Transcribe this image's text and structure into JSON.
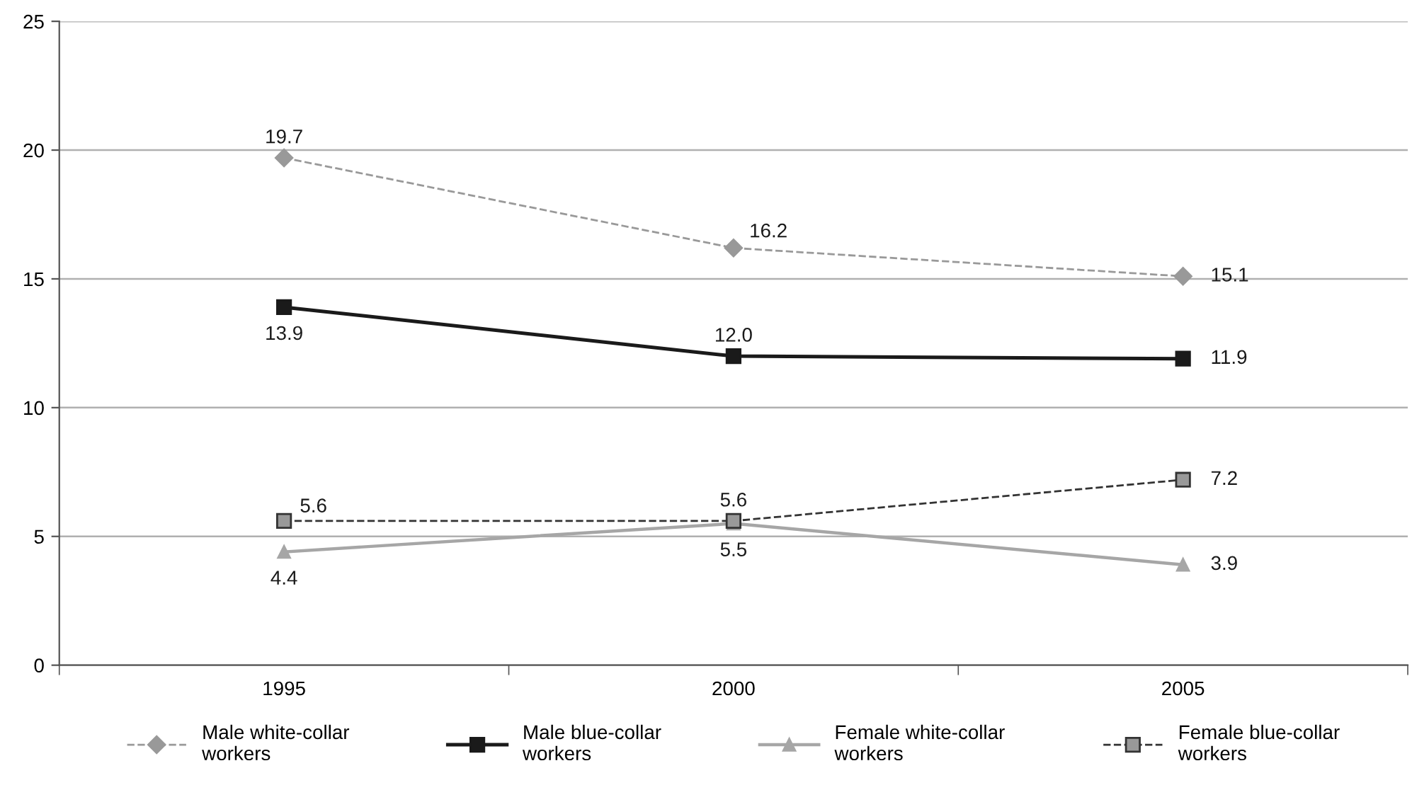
{
  "chart_data": {
    "type": "line",
    "categories": [
      "1995",
      "2000",
      "2005"
    ],
    "series": [
      {
        "name": "Male white-collar\nworkers",
        "color": "#999999",
        "values": [
          19.7,
          16.2,
          15.1
        ],
        "value_labels": [
          "19.7",
          "16.2",
          "15.1"
        ],
        "marker": "diamond",
        "line_style": "dashed"
      },
      {
        "name": "Male blue-collar\nworkers",
        "color": "#1a1a1a",
        "values": [
          13.9,
          12.0,
          11.9
        ],
        "value_labels": [
          "13.9",
          "12.0",
          "11.9"
        ],
        "marker": "square",
        "line_style": "solid"
      },
      {
        "name": "Female white-collar\nworkers",
        "color": "#a6a6a6",
        "values": [
          4.4,
          5.5,
          3.9
        ],
        "value_labels": [
          "4.4",
          "5.5",
          "3.9"
        ],
        "marker": "triangle",
        "line_style": "solid"
      },
      {
        "name": "Female blue-collar\nworkers",
        "color": "#333333",
        "values": [
          5.6,
          5.6,
          7.2
        ],
        "value_labels": [
          "5.6",
          "5.6",
          "7.2"
        ],
        "marker": "square",
        "line_style": "dashed"
      }
    ],
    "ylim": [
      0,
      25
    ],
    "yticks": [
      0,
      5,
      10,
      15,
      20,
      25
    ],
    "grid": "y",
    "legend": "bottom"
  }
}
